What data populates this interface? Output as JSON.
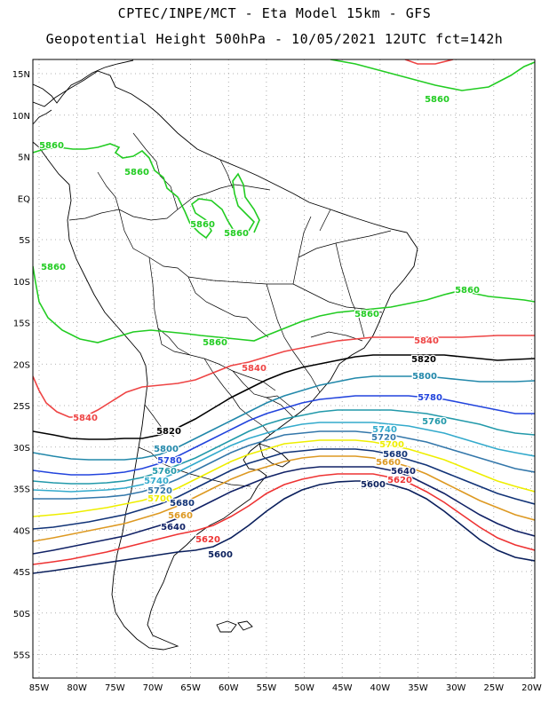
{
  "header": {
    "line1": "CPTEC/INPE/MCT -  Eta Model 15km - GFS",
    "line2": "Geopotential Height 500hPa - 10/05/2021 12UTC fct=142h"
  },
  "axes": {
    "lat_labels": [
      "15N",
      "10N",
      "5N",
      "EQ",
      "5S",
      "10S",
      "15S",
      "20S",
      "25S",
      "30S",
      "35S",
      "40S",
      "45S",
      "50S",
      "55S"
    ],
    "lon_labels": [
      "85W",
      "80W",
      "75W",
      "70W",
      "65W",
      "60W",
      "55W",
      "50W",
      "45W",
      "40W",
      "35W",
      "30W",
      "25W",
      "20W"
    ],
    "grid": "dotted"
  },
  "contour_colors": {
    "5860": "#22cc22",
    "5840": "#ee4444",
    "5820": "#000000",
    "5800": "#2288aa",
    "5780": "#2244dd",
    "5760": "#2299aa",
    "5740": "#33aacc",
    "5720": "#3377aa",
    "5700": "#eeee00",
    "5680": "#113377",
    "5660": "#dd9922",
    "5640": "#112266",
    "5620": "#ee3333",
    "5600": "#0a1f5c"
  },
  "contour_labels": [
    {
      "text": "5860",
      "level": "5860"
    },
    {
      "text": "5860",
      "level": "5860"
    },
    {
      "text": "5860",
      "level": "5860"
    },
    {
      "text": "5860",
      "level": "5860"
    },
    {
      "text": "5860",
      "level": "5860"
    },
    {
      "text": "5860",
      "level": "5860"
    },
    {
      "text": "5860",
      "level": "5860"
    },
    {
      "text": "5860",
      "level": "5860"
    },
    {
      "text": "5860",
      "level": "5860"
    },
    {
      "text": "5840",
      "level": "5840"
    },
    {
      "text": "5840",
      "level": "5840"
    },
    {
      "text": "5840",
      "level": "5840"
    },
    {
      "text": "5820",
      "level": "5820"
    },
    {
      "text": "5820",
      "level": "5820"
    },
    {
      "text": "5800",
      "level": "5800"
    },
    {
      "text": "5800",
      "level": "5800"
    },
    {
      "text": "5780",
      "level": "5780"
    },
    {
      "text": "5780",
      "level": "5780"
    },
    {
      "text": "5760",
      "level": "5760"
    },
    {
      "text": "5760",
      "level": "5760"
    },
    {
      "text": "5740",
      "level": "5740"
    },
    {
      "text": "5740",
      "level": "5740"
    },
    {
      "text": "5720",
      "level": "5720"
    },
    {
      "text": "5720",
      "level": "5720"
    },
    {
      "text": "5700",
      "level": "5700"
    },
    {
      "text": "5700",
      "level": "5700"
    },
    {
      "text": "5680",
      "level": "5680"
    },
    {
      "text": "5680",
      "level": "5680"
    },
    {
      "text": "5660",
      "level": "5660"
    },
    {
      "text": "5660",
      "level": "5660"
    },
    {
      "text": "5640",
      "level": "5640"
    },
    {
      "text": "5640",
      "level": "5640"
    },
    {
      "text": "5620",
      "level": "5620"
    },
    {
      "text": "5620",
      "level": "5620"
    },
    {
      "text": "5600",
      "level": "5600"
    },
    {
      "text": "5600",
      "level": "5600"
    }
  ]
}
